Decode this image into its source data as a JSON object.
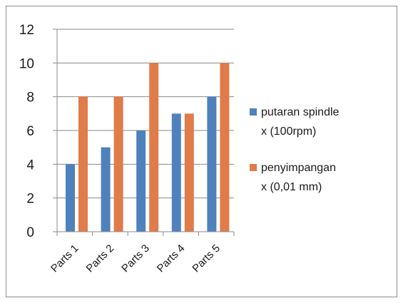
{
  "chart_data": {
    "type": "bar",
    "categories": [
      "Parts 1",
      "Parts 2",
      "Parts 3",
      "Parts 4",
      "Parts 5"
    ],
    "series": [
      {
        "name": "putaran spindle x (100rpm)",
        "name_lines": [
          "putaran spindle",
          "x (100rpm)"
        ],
        "color": "#4f81bd",
        "values": [
          4,
          5,
          6,
          7,
          8
        ]
      },
      {
        "name": "penyimpangan x (0,01 mm)",
        "name_lines": [
          "penyimpangan",
          "x (0,01 mm)"
        ],
        "color": "#e07b4a",
        "values": [
          8,
          8,
          10,
          7,
          10
        ]
      }
    ],
    "yticks": [
      0,
      2,
      4,
      6,
      8,
      10,
      12
    ],
    "ylim": [
      0,
      12
    ],
    "grid": true,
    "legend_position": "right"
  }
}
